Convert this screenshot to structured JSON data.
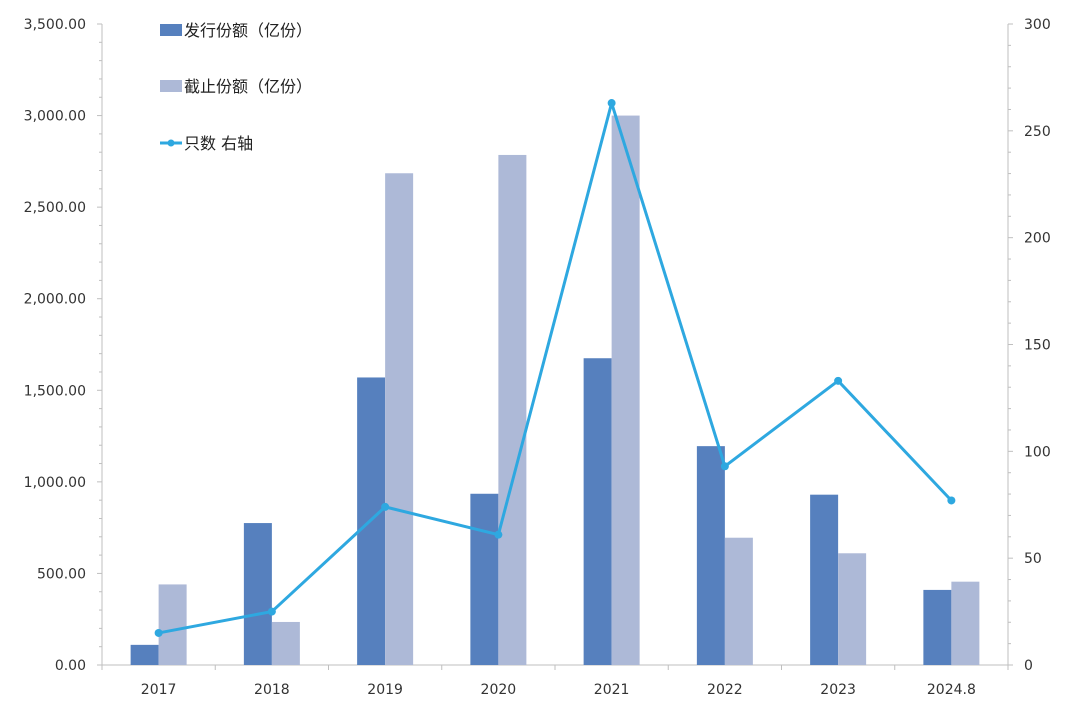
{
  "chart_data": {
    "type": "bar",
    "categories": [
      "2017",
      "2018",
      "2019",
      "2020",
      "2021",
      "2022",
      "2023",
      "2024.8"
    ],
    "series": [
      {
        "name": "发行份额（亿份）",
        "type": "bar",
        "axis": "left",
        "color": "#5680BE",
        "values": [
          110,
          775,
          1570,
          935,
          1675,
          1195,
          930,
          410
        ]
      },
      {
        "name": "截止份额（亿份）",
        "type": "bar",
        "axis": "left",
        "color": "#ADB9D7",
        "values": [
          440,
          235,
          2685,
          2785,
          3000,
          695,
          610,
          455
        ]
      },
      {
        "name": "只数 右轴",
        "type": "line",
        "axis": "right",
        "color": "#2EA8E0",
        "values": [
          15,
          25,
          74,
          61,
          263,
          93,
          133,
          77
        ]
      }
    ],
    "y_left": {
      "ylim": [
        0,
        3500
      ],
      "ticks": [
        "0.00",
        "500.00",
        "1,000.00",
        "1,500.00",
        "2,000.00",
        "2,500.00",
        "3,000.00",
        "3,500.00"
      ]
    },
    "y_right": {
      "ylim": [
        0,
        300
      ],
      "ticks": [
        "0",
        "50",
        "100",
        "150",
        "200",
        "250",
        "300"
      ]
    },
    "grid": false,
    "legend": {
      "position": "top-left"
    },
    "title": "",
    "xlabel": "",
    "ylabel": ""
  }
}
